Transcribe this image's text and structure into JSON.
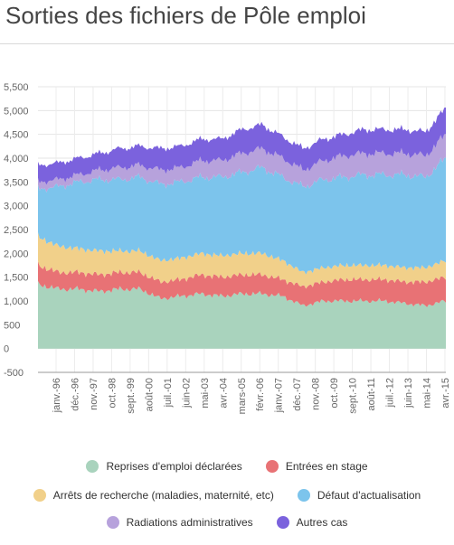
{
  "title": "Sorties des fichiers de Pôle emploi",
  "colors": {
    "reprises": "#a9d3bd",
    "entrees": "#e87275",
    "arrets": "#f1d08a",
    "defaut": "#7cc4ec",
    "radiations": "#b7a2dc",
    "autres": "#7b62dd"
  },
  "chart_data": {
    "type": "area",
    "stacked": true,
    "title": "Sorties des fichiers de Pôle emploi",
    "ylim": [
      -500,
      5500
    ],
    "yticks": [
      "5,500",
      "5,000",
      "4,500",
      "4,000",
      "3,500",
      "3,000",
      "2,500",
      "2,000",
      "1,500",
      "1,000",
      "500",
      "0",
      "-500"
    ],
    "xlabels": [
      "janv.-96",
      "déc.-96",
      "nov.-97",
      "oct.-98",
      "sept.-99",
      "août-00",
      "juil.-01",
      "juin-02",
      "mai-03",
      "avr.-04",
      "mars-05",
      "févr.-06",
      "janv.-07",
      "déc.-07",
      "nov.-08",
      "oct.-09",
      "sept.-10",
      "août-11",
      "juil.-12",
      "juin-13",
      "mai-14",
      "avr.-15"
    ],
    "x": [
      "1996-01",
      "1997-01",
      "1998-01",
      "1999-01",
      "2000-01",
      "2001-01",
      "2002-01",
      "2003-01",
      "2004-01",
      "2005-01",
      "2006-01",
      "2007-01",
      "2008-01",
      "2009-01",
      "2010-01",
      "2011-01",
      "2012-01",
      "2013-01",
      "2014-01",
      "2015-01",
      "2015-12"
    ],
    "grid": true,
    "legend_position": "bottom",
    "series": [
      {
        "name": "Reprises d'emploi déclarées",
        "values": [
          1350,
          1250,
          1250,
          1200,
          1250,
          1250,
          1050,
          1100,
          1150,
          1100,
          1150,
          1150,
          1100,
          900,
          1000,
          1000,
          1000,
          1000,
          950,
          900,
          1000
        ]
      },
      {
        "name": "Entrées en stage",
        "values": [
          400,
          350,
          350,
          350,
          350,
          350,
          350,
          350,
          400,
          400,
          400,
          400,
          350,
          400,
          400,
          450,
          450,
          450,
          450,
          500,
          500
        ]
      },
      {
        "name": "Arrêts de recherche (maladies, maternité, etc)",
        "values": [
          600,
          550,
          500,
          500,
          450,
          450,
          450,
          450,
          450,
          450,
          450,
          450,
          400,
          300,
          300,
          300,
          300,
          300,
          300,
          300,
          350
        ]
      },
      {
        "name": "Défaut d'actualisation",
        "values": [
          1000,
          1250,
          1400,
          1500,
          1500,
          1550,
          1600,
          1600,
          1600,
          1650,
          1700,
          1800,
          1750,
          1800,
          1850,
          1850,
          1900,
          1900,
          1950,
          1900,
          2150
        ]
      },
      {
        "name": "Radiations administratives",
        "values": [
          150,
          150,
          150,
          200,
          250,
          250,
          300,
          300,
          350,
          350,
          400,
          400,
          400,
          350,
          400,
          450,
          450,
          450,
          450,
          450,
          500
        ]
      },
      {
        "name": "Autres cas",
        "values": [
          350,
          350,
          350,
          350,
          400,
          400,
          450,
          450,
          450,
          450,
          500,
          500,
          450,
          450,
          450,
          450,
          500,
          500,
          500,
          500,
          550
        ]
      }
    ]
  },
  "legend": {
    "row1": [
      {
        "label": "Reprises d'emploi déclarées",
        "color": "#a9d3bd"
      },
      {
        "label": "Entrées en stage",
        "color": "#e87275"
      }
    ],
    "row2": [
      {
        "label": "Arrêts de recherche (maladies, maternité, etc)",
        "color": "#f1d08a"
      },
      {
        "label": "Défaut d'actualisation",
        "color": "#7cc4ec"
      }
    ],
    "row3": [
      {
        "label": "Radiations administratives",
        "color": "#b7a2dc"
      },
      {
        "label": "Autres cas",
        "color": "#7b62dd"
      }
    ]
  }
}
